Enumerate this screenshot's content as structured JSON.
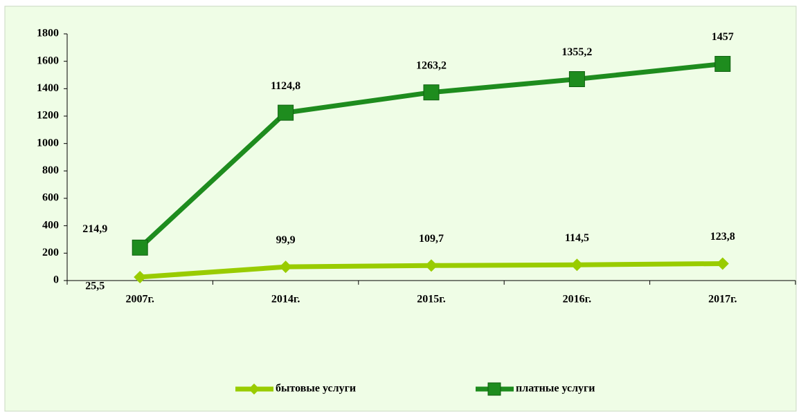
{
  "chart_data": {
    "type": "line",
    "stacked": true,
    "categories": [
      "2007г.",
      "2014г.",
      "2015г.",
      "2016г.",
      "2017г."
    ],
    "series": [
      {
        "name": "бытовые услуги",
        "color": "#99cc00",
        "marker": "diamond",
        "values": [
          25.5,
          99.9,
          109.7,
          114.5,
          123.8
        ],
        "value_labels": [
          "25,5",
          "99,9",
          "109,7",
          "114,5",
          "123,8"
        ]
      },
      {
        "name": "платные услуги",
        "color": "#1e8c1e",
        "marker": "square",
        "values": [
          214.9,
          1124.8,
          1263.2,
          1355.2,
          1457
        ],
        "value_labels": [
          "214,9",
          "1124,8",
          "1263,2",
          "1355,2",
          "1457"
        ]
      }
    ],
    "ylim": [
      0,
      1800
    ],
    "yticks": [
      0,
      200,
      400,
      600,
      800,
      1000,
      1200,
      1400,
      1600,
      1800
    ],
    "grid": false,
    "legend": "bottom"
  }
}
